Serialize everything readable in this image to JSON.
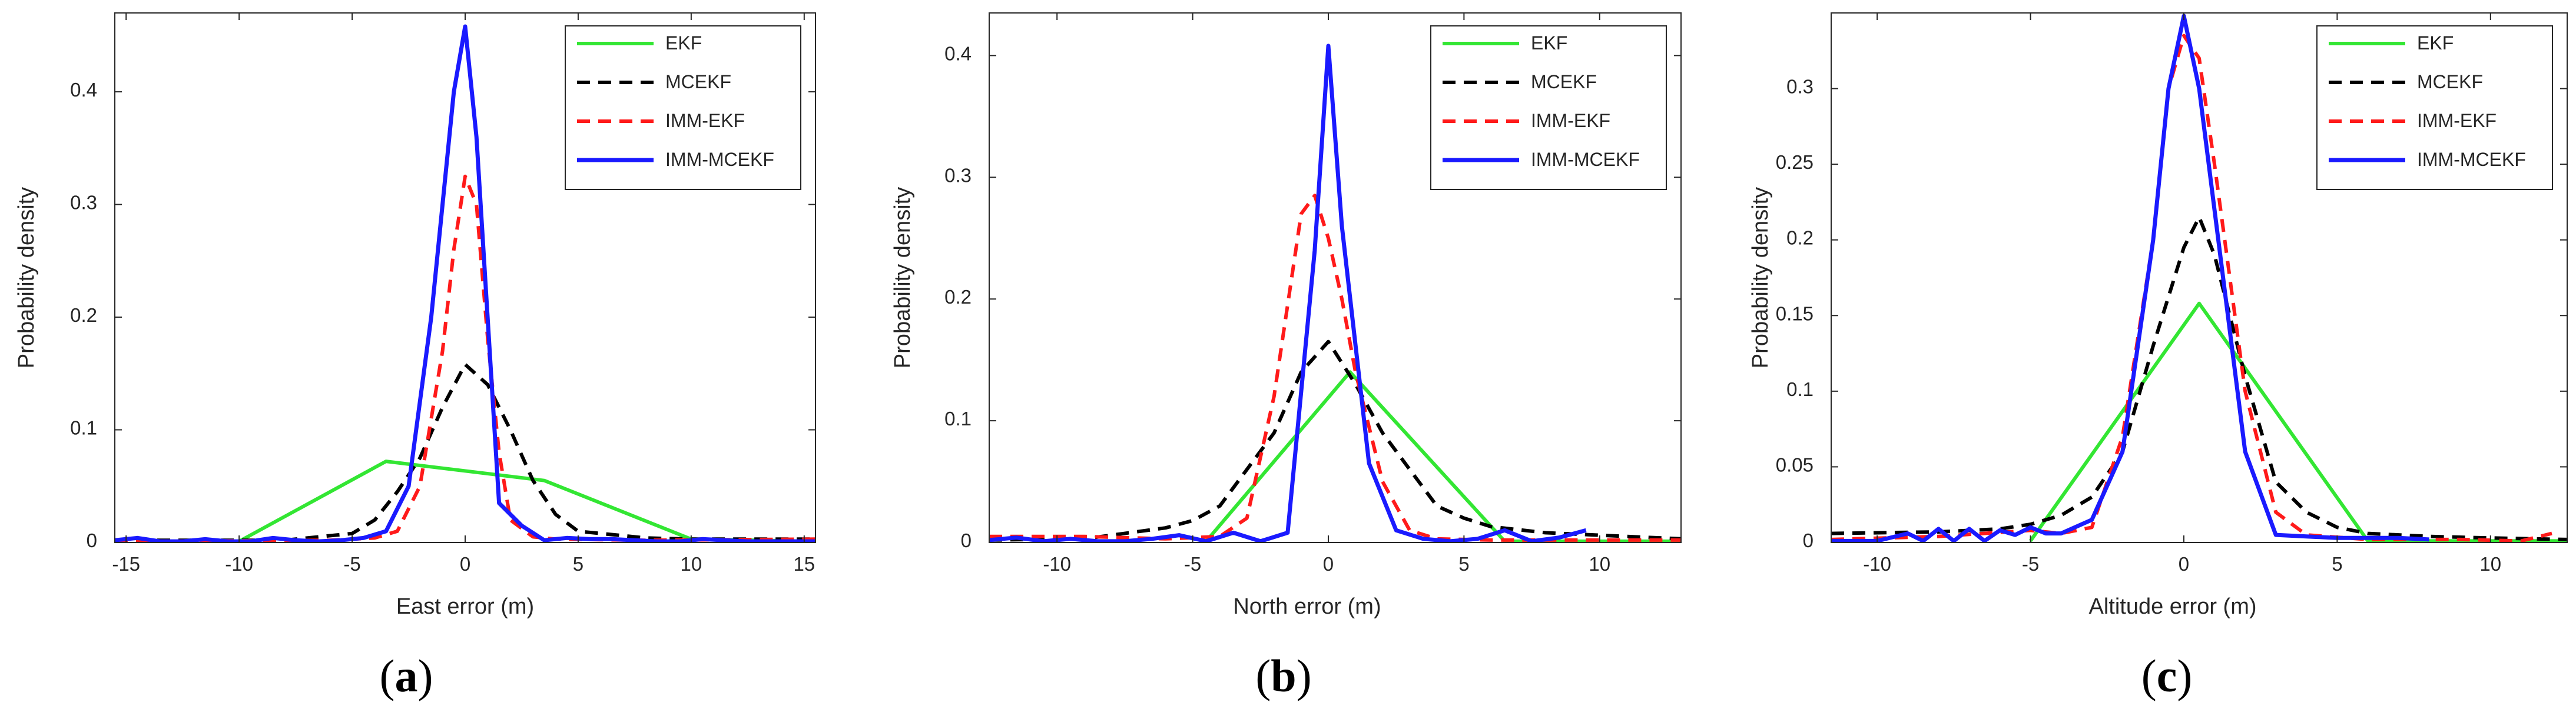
{
  "panels": [
    {
      "label": "a"
    },
    {
      "label": "b"
    },
    {
      "label": "c"
    }
  ],
  "series_styles": [
    {
      "name": "EKF",
      "color": "#33e633",
      "dash": "solid"
    },
    {
      "name": "MCEKF",
      "color": "#000000",
      "dash": "dashed"
    },
    {
      "name": "IMM-EKF",
      "color": "#ff1a1a",
      "dash": "dashed"
    },
    {
      "name": "IMM-MCEKF",
      "color": "#1a1aff",
      "dash": "solid"
    }
  ],
  "chart_data": [
    {
      "type": "line",
      "xlabel": "East error (m)",
      "ylabel": "Probability density",
      "xlim": [
        -15.5,
        15.5
      ],
      "ylim": [
        0,
        0.47
      ],
      "xticks": [
        -15,
        -10,
        -5,
        0,
        5,
        10,
        15
      ],
      "yticks": [
        0,
        0.1,
        0.2,
        0.3,
        0.4
      ],
      "ytick_labels": [
        "0",
        "0.1",
        "0.2",
        "0.3",
        "0.4"
      ],
      "legend": "top-right",
      "series": [
        {
          "name": "EKF",
          "x": [
            -10,
            -3.5,
            3.5,
            10,
            15.5
          ],
          "y": [
            0.001,
            0.072,
            0.055,
            0.003,
            0.001
          ]
        },
        {
          "name": "MCEKF",
          "x": [
            -15.5,
            -8,
            -5,
            -4,
            -3,
            -2,
            -1,
            0,
            1,
            2,
            3,
            4,
            5,
            6,
            8,
            10,
            15.5
          ],
          "y": [
            0.002,
            0.002,
            0.008,
            0.02,
            0.045,
            0.075,
            0.12,
            0.158,
            0.14,
            0.1,
            0.055,
            0.025,
            0.01,
            0.008,
            0.004,
            0.003,
            0.003
          ]
        },
        {
          "name": "IMM-EKF",
          "x": [
            -15.5,
            -6,
            -4,
            -3,
            -2,
            -1,
            -0.5,
            0,
            0.5,
            1,
            1.5,
            2,
            3,
            4,
            8,
            15.5
          ],
          "y": [
            0.001,
            0.002,
            0.004,
            0.01,
            0.05,
            0.17,
            0.26,
            0.325,
            0.3,
            0.18,
            0.08,
            0.02,
            0.005,
            0.003,
            0.002,
            0.003
          ]
        },
        {
          "name": "IMM-MCEKF",
          "x": [
            -15.5,
            -14.5,
            -13.5,
            -12.5,
            -11.5,
            -10.5,
            -9.5,
            -8.5,
            -7.5,
            -6.5,
            -5.5,
            -4.5,
            -3.5,
            -2.5,
            -1.5,
            -0.5,
            0,
            0.5,
            1.5,
            2.5,
            3.5,
            4.5,
            5.5,
            6.5,
            7.5,
            8.5,
            9.5,
            10.5,
            11.5,
            12.5,
            13.5,
            14.5,
            15.5
          ],
          "y": [
            0.002,
            0.004,
            0.001,
            0.001,
            0.003,
            0.001,
            0.001,
            0.004,
            0.002,
            0.001,
            0.002,
            0.004,
            0.01,
            0.05,
            0.2,
            0.4,
            0.458,
            0.36,
            0.035,
            0.015,
            0.002,
            0.004,
            0.003,
            0.003,
            0.002,
            0.001,
            0.001,
            0.003,
            0.002,
            0.001,
            0.001,
            0.001,
            0.001
          ]
        }
      ]
    },
    {
      "type": "line",
      "xlabel": "North error (m)",
      "ylabel": "Probability density",
      "xlim": [
        -12.5,
        13
      ],
      "ylim": [
        0,
        0.435
      ],
      "xticks": [
        -10,
        -5,
        0,
        5,
        10
      ],
      "yticks": [
        0,
        0.1,
        0.2,
        0.3,
        0.4
      ],
      "ytick_labels": [
        "0",
        "0.1",
        "0.2",
        "0.3",
        "0.4"
      ],
      "legend": "top-right",
      "series": [
        {
          "name": "EKF",
          "x": [
            -4.5,
            0.8,
            6.5,
            13
          ],
          "y": [
            0.001,
            0.14,
            0.001,
            0.001
          ]
        },
        {
          "name": "MCEKF",
          "x": [
            -12.5,
            -9,
            -6,
            -5,
            -4,
            -3,
            -2,
            -1,
            0,
            1,
            2,
            3,
            4,
            5,
            6,
            8,
            10,
            13
          ],
          "y": [
            0.002,
            0.003,
            0.012,
            0.018,
            0.03,
            0.06,
            0.09,
            0.14,
            0.165,
            0.13,
            0.09,
            0.06,
            0.03,
            0.02,
            0.013,
            0.008,
            0.006,
            0.003
          ]
        },
        {
          "name": "IMM-EKF",
          "x": [
            -12.5,
            -9,
            -6,
            -4,
            -3,
            -2,
            -1,
            -0.5,
            0,
            0.5,
            1,
            2,
            3,
            4,
            6,
            9,
            13
          ],
          "y": [
            0.005,
            0.005,
            0.003,
            0.005,
            0.02,
            0.12,
            0.27,
            0.285,
            0.25,
            0.2,
            0.14,
            0.05,
            0.01,
            0.003,
            0.002,
            0.002,
            0.002
          ]
        },
        {
          "name": "IMM-MCEKF",
          "x": [
            -12.5,
            -11.5,
            -10.5,
            -9.5,
            -8.5,
            -7.5,
            -6.5,
            -5.5,
            -4.5,
            -3.5,
            -2.5,
            -1.5,
            -0.5,
            0,
            0.5,
            1.5,
            2.5,
            3.5,
            4.5,
            5.5,
            6.5,
            7.5,
            8.5,
            9.5
          ],
          "y": [
            0.002,
            0.004,
            0.001,
            0.003,
            0.001,
            0.001,
            0.003,
            0.006,
            0.001,
            0.008,
            0.001,
            0.008,
            0.24,
            0.408,
            0.26,
            0.065,
            0.01,
            0.003,
            0.001,
            0.003,
            0.01,
            0.001,
            0.004,
            0.01
          ]
        }
      ]
    },
    {
      "type": "line",
      "xlabel": "Altitude error (m)",
      "ylabel": "Probability density",
      "xlim": [
        -11.5,
        12.5
      ],
      "ylim": [
        0,
        0.35
      ],
      "xticks": [
        -10,
        -5,
        0,
        5,
        10
      ],
      "yticks": [
        0,
        0.05,
        0.1,
        0.15,
        0.2,
        0.25,
        0.3
      ],
      "ytick_labels": [
        "0",
        "0.05",
        "0.1",
        "0.15",
        "0.2",
        "0.25",
        "0.3"
      ],
      "legend": "top-right",
      "series": [
        {
          "name": "EKF",
          "x": [
            -5,
            0.5,
            6,
            12.5
          ],
          "y": [
            0.001,
            0.158,
            0.001,
            0.001
          ]
        },
        {
          "name": "MCEKF",
          "x": [
            -11.5,
            -8,
            -6,
            -5,
            -4,
            -3,
            -2,
            -1,
            0,
            0.5,
            1,
            2,
            3,
            4,
            5,
            6,
            8,
            10,
            12.5
          ],
          "y": [
            0.006,
            0.007,
            0.009,
            0.012,
            0.018,
            0.03,
            0.06,
            0.13,
            0.195,
            0.215,
            0.19,
            0.11,
            0.04,
            0.02,
            0.01,
            0.006,
            0.004,
            0.003,
            0.002
          ]
        },
        {
          "name": "IMM-EKF",
          "x": [
            -11.5,
            -8,
            -5,
            -4,
            -3,
            -2,
            -1,
            -0.5,
            0,
            0.5,
            1,
            2,
            3,
            4,
            6,
            9,
            11,
            12
          ],
          "y": [
            0.002,
            0.004,
            0.008,
            0.006,
            0.01,
            0.07,
            0.2,
            0.3,
            0.335,
            0.32,
            0.25,
            0.1,
            0.02,
            0.005,
            0.002,
            0.002,
            0.001,
            0.006
          ]
        },
        {
          "name": "IMM-MCEKF",
          "x": [
            -11.5,
            -10,
            -9,
            -8.5,
            -8,
            -7.5,
            -7,
            -6.5,
            -6,
            -5.5,
            -5,
            -4.5,
            -4,
            -3,
            -2,
            -1,
            -0.5,
            0,
            0.5,
            1,
            2,
            3,
            4,
            5,
            6,
            7,
            8
          ],
          "y": [
            0.001,
            0.001,
            0.006,
            0.001,
            0.009,
            0.001,
            0.009,
            0.001,
            0.008,
            0.005,
            0.01,
            0.006,
            0.006,
            0.015,
            0.06,
            0.2,
            0.3,
            0.348,
            0.3,
            0.22,
            0.06,
            0.005,
            0.004,
            0.003,
            0.003,
            0.003,
            0.002
          ]
        }
      ]
    }
  ]
}
